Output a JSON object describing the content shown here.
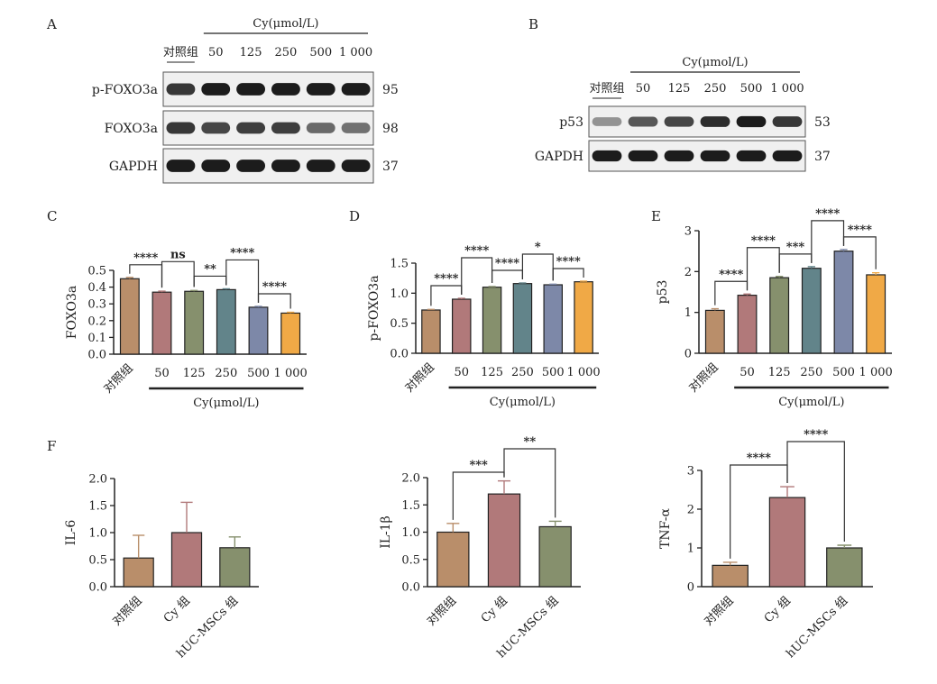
{
  "colors": {
    "ctrl": "#b98e6a",
    "c50": "#b1797a",
    "c125": "#86906d",
    "c250": "#62848a",
    "c500": "#7d88a8",
    "c1000": "#f0a946",
    "cy": "#b1797a",
    "huc": "#86906d",
    "axis": "#222222",
    "band": "#1c1c1c"
  },
  "panels": {
    "a": "A",
    "b": "B",
    "c": "C",
    "d": "D",
    "e": "E",
    "f": "F"
  },
  "blot_a": {
    "group_label": "Cy(μmol/L)",
    "lanes": [
      "对照组",
      "50",
      "125",
      "250",
      "500",
      "1 000"
    ],
    "rows": [
      {
        "label": "p-FOXO3a",
        "kda": "95",
        "intensity": [
          0.85,
          1.0,
          1.0,
          1.0,
          1.0,
          1.0
        ]
      },
      {
        "label": "FOXO3a",
        "kda": "98",
        "intensity": [
          0.85,
          0.75,
          0.8,
          0.8,
          0.55,
          0.5
        ]
      },
      {
        "label": "GAPDH",
        "kda": "37",
        "intensity": [
          1.0,
          1.0,
          1.0,
          1.0,
          1.0,
          1.0
        ]
      }
    ]
  },
  "blot_b": {
    "group_label": "Cy(μmol/L)",
    "lanes": [
      "对照组",
      "50",
      "125",
      "250",
      "500",
      "1 000"
    ],
    "rows": [
      {
        "label": "p53",
        "kda": "53",
        "intensity": [
          0.3,
          0.65,
          0.75,
          0.9,
          1.0,
          0.85
        ]
      },
      {
        "label": "GAPDH",
        "kda": "37",
        "intensity": [
          1.0,
          1.0,
          1.0,
          1.0,
          1.0,
          1.0
        ]
      }
    ]
  },
  "chart_data": [
    {
      "id": "C",
      "type": "bar",
      "categories": [
        "对照组",
        "50",
        "125",
        "250",
        "500",
        "1 000"
      ],
      "values": [
        0.45,
        0.37,
        0.375,
        0.385,
        0.28,
        0.245
      ],
      "errors": [
        0.008,
        0.006,
        0.005,
        0.005,
        0.005,
        0.005
      ],
      "ylabel": "FOXO3a",
      "ylim": [
        0,
        0.5
      ],
      "yticks": [
        "0.0",
        "0.1",
        "0.2",
        "0.3",
        "0.4",
        "0.5"
      ],
      "group_label": "Cy(μmol/L)",
      "significance": [
        {
          "label": "****",
          "from": 0,
          "to": 1
        },
        {
          "label": "ns",
          "from": 1,
          "to": 2
        },
        {
          "label": "**",
          "from": 2,
          "to": 3
        },
        {
          "label": "****",
          "from": 3,
          "to": 4
        },
        {
          "label": "****",
          "from": 4,
          "to": 5
        }
      ]
    },
    {
      "id": "D",
      "type": "bar",
      "categories": [
        "对照组",
        "50",
        "125",
        "250",
        "500",
        "1 000"
      ],
      "values": [
        0.72,
        0.9,
        1.1,
        1.16,
        1.14,
        1.19
      ],
      "errors": [
        0.01,
        0.015,
        0.01,
        0.01,
        0.01,
        0.01
      ],
      "ylabel": "p-FOXO3a",
      "ylim": [
        0,
        1.5
      ],
      "yticks": [
        "0.0",
        "0.5",
        "1.0",
        "1.5"
      ],
      "group_label": "Cy(μmol/L)",
      "significance": [
        {
          "label": "****",
          "from": 0,
          "to": 1
        },
        {
          "label": "****",
          "from": 1,
          "to": 2
        },
        {
          "label": "****",
          "from": 2,
          "to": 3
        },
        {
          "label": "*",
          "from": 3,
          "to": 4
        },
        {
          "label": "****",
          "from": 4,
          "to": 5
        }
      ]
    },
    {
      "id": "E",
      "type": "bar",
      "categories": [
        "对照组",
        "50",
        "125",
        "250",
        "500",
        "1 000"
      ],
      "values": [
        1.05,
        1.42,
        1.85,
        2.08,
        2.5,
        1.92
      ],
      "errors": [
        0.04,
        0.03,
        0.03,
        0.04,
        0.04,
        0.05
      ],
      "ylabel": "p53",
      "ylim": [
        0,
        3
      ],
      "yticks": [
        "0",
        "1",
        "2",
        "3"
      ],
      "group_label": "Cy(μmol/L)",
      "significance": [
        {
          "label": "****",
          "from": 0,
          "to": 1
        },
        {
          "label": "****",
          "from": 1,
          "to": 2
        },
        {
          "label": "***",
          "from": 2,
          "to": 3
        },
        {
          "label": "****",
          "from": 3,
          "to": 4
        },
        {
          "label": "****",
          "from": 4,
          "to": 5
        }
      ]
    },
    {
      "id": "F1",
      "type": "bar",
      "categories": [
        "对照组",
        "Cy 组",
        "hUC-MSCs 组"
      ],
      "values": [
        0.53,
        1.0,
        0.72
      ],
      "errors": [
        0.42,
        0.56,
        0.2
      ],
      "ylabel": "IL-6",
      "ylim": [
        0,
        2
      ],
      "yticks": [
        "0.0",
        "0.5",
        "1.0",
        "1.5",
        "2.0"
      ]
    },
    {
      "id": "F2",
      "type": "bar",
      "categories": [
        "对照组",
        "Cy 组",
        "hUC-MSCs 组"
      ],
      "values": [
        1.0,
        1.7,
        1.1
      ],
      "errors": [
        0.16,
        0.24,
        0.1
      ],
      "ylabel": "IL-1β",
      "ylim": [
        0,
        2
      ],
      "yticks": [
        "0.0",
        "0.5",
        "1.0",
        "1.5",
        "2.0"
      ],
      "significance": [
        {
          "label": "***",
          "from": 0,
          "to": 1
        },
        {
          "label": "**",
          "from": 1,
          "to": 2
        }
      ]
    },
    {
      "id": "F3",
      "type": "bar",
      "categories": [
        "对照组",
        "Cy 组",
        "hUC-MSCs 组"
      ],
      "values": [
        0.55,
        2.3,
        1.0
      ],
      "errors": [
        0.08,
        0.28,
        0.07
      ],
      "ylabel": "TNF-α",
      "ylim": [
        0,
        3
      ],
      "yticks": [
        "0",
        "1",
        "2",
        "3"
      ],
      "significance": [
        {
          "label": "****",
          "from": 0,
          "to": 1
        },
        {
          "label": "****",
          "from": 1,
          "to": 2
        }
      ]
    }
  ]
}
